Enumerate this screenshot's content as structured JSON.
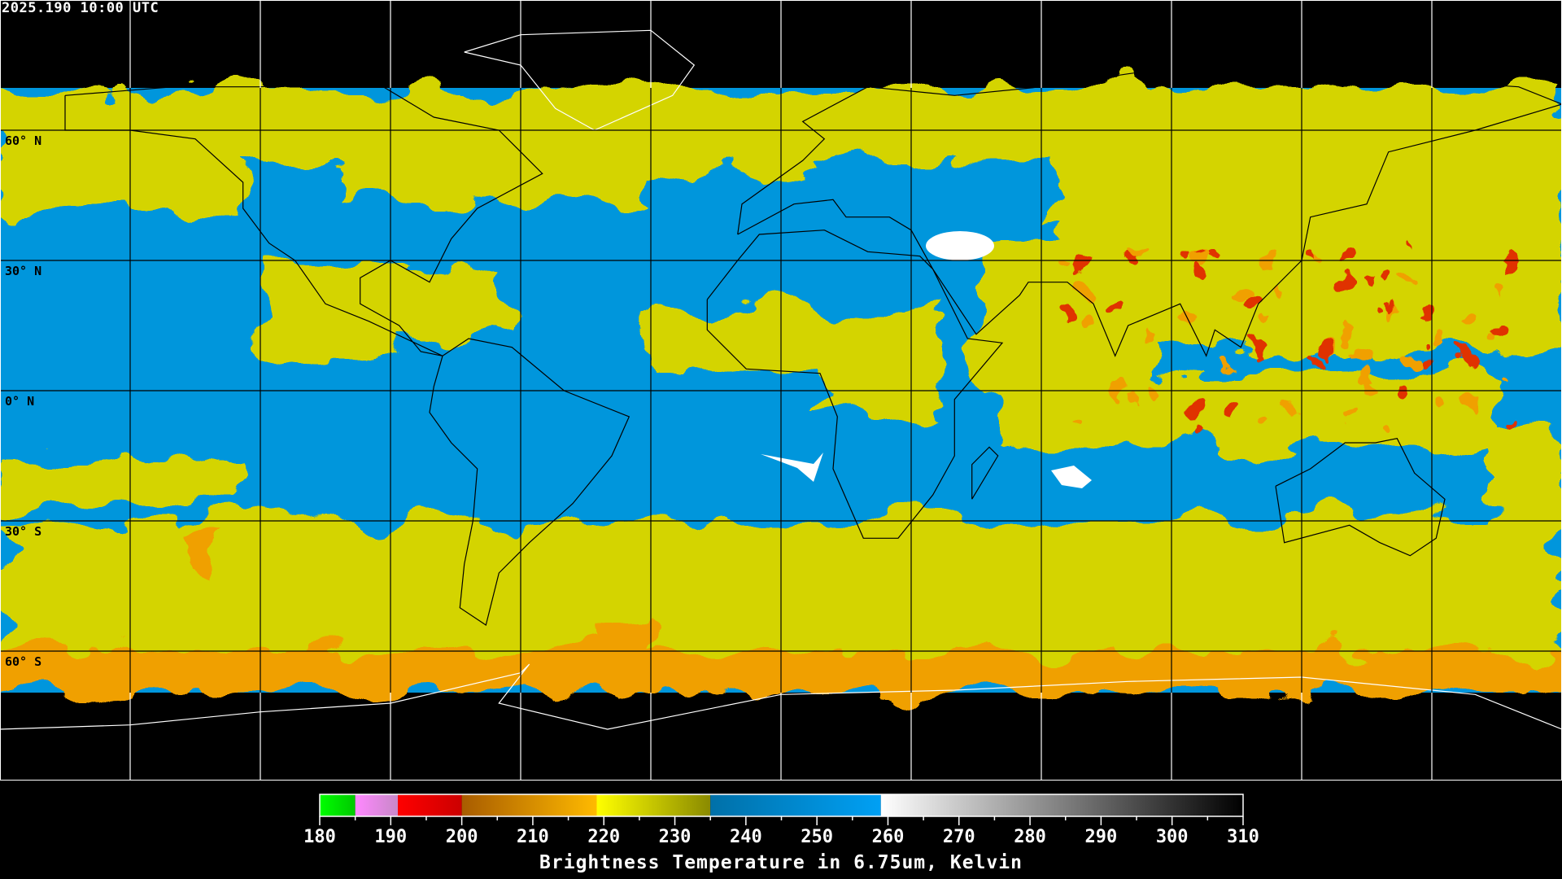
{
  "timestamp": "2025.190 10:00 UTC",
  "lat_labels": [
    "60° N",
    "30° N",
    "0° N",
    "30° S",
    "60° S"
  ],
  "colors": {
    "background": "#000000",
    "water_vapor_dry": "#0096dc",
    "cloud_cold": "#d4d400",
    "very_cold": "#f0a000",
    "warm_surface": "#ffffff",
    "coastline_over_data": "#000000",
    "coastline_over_black": "#ffffff",
    "grid": "#000000",
    "grid_over_black": "#ffffff"
  },
  "colorbar": {
    "title": "Brightness Temperature in 6.75um, Kelvin",
    "min": 180,
    "max": 310,
    "tick_labels": [
      "180",
      "190",
      "200",
      "210",
      "220",
      "230",
      "240",
      "250",
      "260",
      "270",
      "280",
      "290",
      "300",
      "310"
    ],
    "segments": [
      {
        "from": 180,
        "to": 185,
        "start": "#00ff00",
        "end": "#00c800"
      },
      {
        "from": 185,
        "to": 191,
        "start": "#ff88ff",
        "end": "#c888c8"
      },
      {
        "from": 191,
        "to": 200,
        "start": "#ff0000",
        "end": "#cc0000"
      },
      {
        "from": 200,
        "to": 219,
        "start": "#a85c00",
        "end": "#ffba00"
      },
      {
        "from": 219,
        "to": 235,
        "start": "#ffff00",
        "end": "#8a8a00"
      },
      {
        "from": 235,
        "to": 259,
        "start": "#0070a8",
        "end": "#00a0f4"
      },
      {
        "from": 259,
        "to": 310,
        "start": "#ffffff",
        "end": "#000000"
      }
    ]
  }
}
